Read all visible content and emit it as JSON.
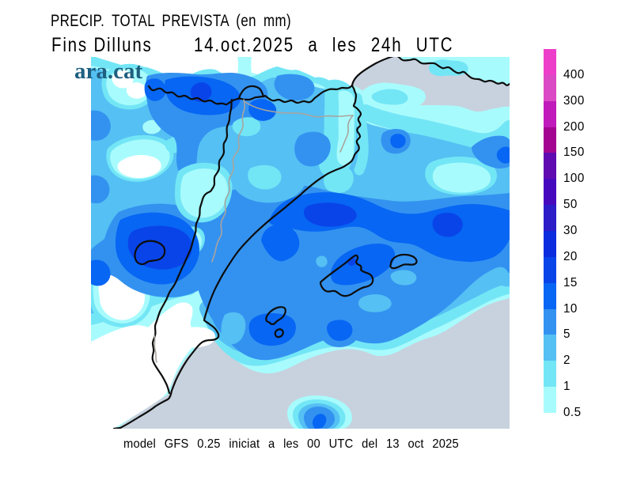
{
  "header": {
    "title": "PRECIP. TOTAL PREVISTA (en mm)",
    "subtitle_left": "Fins Dilluns",
    "subtitle_right": "14.oct.2025 a les 24h UTC"
  },
  "logo": "ara.cat",
  "caption": "model GFS 0.25 iniciat a les 00 UTC del 13 oct 2025",
  "legend": {
    "labels": [
      "400",
      "300",
      "200",
      "150",
      "100",
      "50",
      "30",
      "20",
      "15",
      "10",
      "5",
      "2",
      "1",
      "0.5"
    ],
    "colors": [
      "#ed3ec9",
      "#db4ac4",
      "#c01bba",
      "#a30590",
      "#5f0bb1",
      "#4609be",
      "#2c1dc9",
      "#0b2cde",
      "#0944e9",
      "#0766f3",
      "#3392f0",
      "#55c0f3",
      "#73e6f6",
      "#a8fbfc"
    ]
  },
  "map_palette": {
    "sea": "#c7d2de",
    "land": "#ffffff",
    "mm_0_5": "#a8fbfc",
    "mm_1": "#73e6f6",
    "mm_2": "#55c0f3",
    "mm_5": "#3392f0",
    "mm_10": "#0766f3",
    "mm_15": "#0944e9"
  },
  "chart_data": {
    "type": "heatmap",
    "title": "PRECIP. TOTAL PREVISTA (en mm)",
    "subtitle": "Fins Dilluns 14.oct.2025 a les 24h UTC",
    "units": "mm",
    "levels_mm": [
      0.5,
      1,
      2,
      5,
      10,
      15,
      20,
      30,
      50,
      100,
      150,
      200,
      300,
      400
    ],
    "max_level_on_map_mm": 20,
    "legend_position": "right",
    "source": "model GFS 0.25 iniciat a les 00 UTC del 13 oct 2025"
  }
}
